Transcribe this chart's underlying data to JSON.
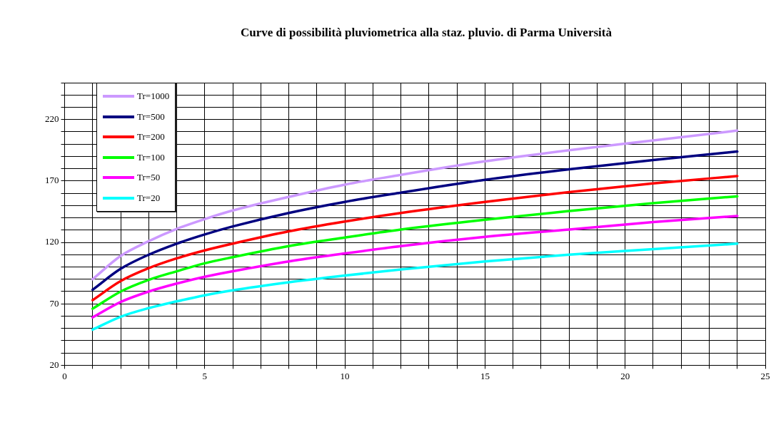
{
  "chart_data": {
    "type": "line",
    "title": "Curve di possibilità pluviometrica alla staz. pluvio. di Parma Università",
    "x": [
      1,
      2,
      3,
      4,
      5,
      6,
      8,
      10,
      12,
      15,
      18,
      21,
      24
    ],
    "series": [
      {
        "name": "Tr=1000",
        "color": "#cc99ff",
        "values": [
          90,
          109,
          121,
          131,
          139,
          146,
          157,
          167,
          175,
          186,
          195,
          203,
          211
        ]
      },
      {
        "name": "Tr=500",
        "color": "#000080",
        "values": [
          81.5,
          98.5,
          110,
          119,
          126.5,
          133,
          144,
          153,
          160.5,
          171,
          179.5,
          187,
          194
        ]
      },
      {
        "name": "Tr=200",
        "color": "#ff0000",
        "values": [
          73,
          88.5,
          99,
          107,
          113.5,
          119,
          129,
          137,
          144,
          153,
          161,
          168,
          174
        ]
      },
      {
        "name": "Tr=100",
        "color": "#00ff00",
        "values": [
          66,
          80,
          89.5,
          96.5,
          103,
          108,
          117,
          124,
          130.5,
          138.5,
          145.5,
          152,
          157.5
        ]
      },
      {
        "name": "Tr=50",
        "color": "#ff00ff",
        "values": [
          59,
          71.5,
          80,
          86.5,
          92,
          96.5,
          104.5,
          111,
          117,
          124.5,
          130.5,
          136.5,
          141.5
        ]
      },
      {
        "name": "Tr=20",
        "color": "#00ffff",
        "values": [
          49,
          59.5,
          66.5,
          72,
          77,
          81,
          87.5,
          93,
          98,
          104.5,
          110,
          114.5,
          119
        ]
      }
    ],
    "xlim": [
      0,
      25
    ],
    "xticks": [
      0,
      {
        "value": 1,
        "label": null
      },
      {
        "value": 2,
        "label": null
      },
      {
        "value": 3,
        "label": null
      },
      {
        "value": 4,
        "label": null
      },
      5,
      {
        "value": 6,
        "label": null
      },
      {
        "value": 7,
        "label": null
      },
      {
        "value": 8,
        "label": null
      },
      {
        "value": 9,
        "label": null
      },
      10,
      {
        "value": 11,
        "label": null
      },
      {
        "value": 12,
        "label": null
      },
      {
        "value": 13,
        "label": null
      },
      {
        "value": 14,
        "label": null
      },
      15,
      {
        "value": 16,
        "label": null
      },
      {
        "value": 17,
        "label": null
      },
      {
        "value": 18,
        "label": null
      },
      {
        "value": 19,
        "label": null
      },
      20,
      {
        "value": 21,
        "label": null
      },
      {
        "value": 22,
        "label": null
      },
      {
        "value": 23,
        "label": null
      },
      {
        "value": 24,
        "label": null
      },
      25
    ],
    "ylim": [
      20,
      250
    ],
    "yticks": [
      20,
      {
        "value": 30,
        "label": null
      },
      {
        "value": 40,
        "label": null
      },
      {
        "value": 50,
        "label": null
      },
      {
        "value": 60,
        "label": null
      },
      70,
      {
        "value": 80,
        "label": null
      },
      {
        "value": 90,
        "label": null
      },
      {
        "value": 100,
        "label": null
      },
      {
        "value": 110,
        "label": null
      },
      120,
      {
        "value": 130,
        "label": null
      },
      {
        "value": 140,
        "label": null
      },
      {
        "value": 150,
        "label": null
      },
      {
        "value": 160,
        "label": null
      },
      170,
      {
        "value": 180,
        "label": null
      },
      {
        "value": 190,
        "label": null
      },
      {
        "value": 200,
        "label": null
      },
      {
        "value": 210,
        "label": null
      },
      220,
      {
        "value": 230,
        "label": null
      },
      {
        "value": 240,
        "label": null
      },
      {
        "value": 250,
        "label": null
      }
    ],
    "grid": true,
    "legend": "top left",
    "marker": "none",
    "line_style": "solid"
  }
}
